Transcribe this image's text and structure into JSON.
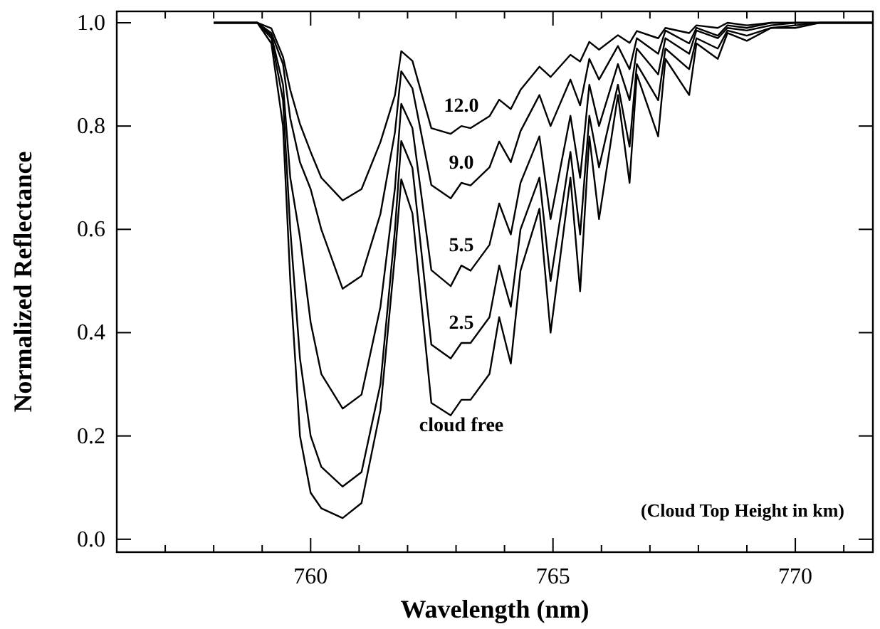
{
  "chart_data": {
    "type": "line",
    "xlabel": "Wavelength (nm)",
    "ylabel": "Normalized Reflectance",
    "x": [
      758.0,
      758.9,
      759.19,
      759.43,
      759.58,
      759.78,
      760.0,
      760.22,
      760.66,
      761.05,
      761.44,
      761.74,
      761.87,
      762.1,
      762.49,
      762.89,
      763.11,
      763.3,
      763.69,
      763.89,
      764.13,
      764.33,
      764.72,
      764.95,
      765.36,
      765.56,
      765.75,
      765.95,
      766.34,
      766.58,
      766.73,
      767.17,
      767.32,
      767.81,
      767.96,
      768.4,
      768.6,
      769.0,
      769.5,
      770.0,
      770.5,
      771.0,
      771.6
    ],
    "series": [
      {
        "name": "12.0",
        "color": "#000000",
        "values": [
          1.0,
          1.0,
          0.989,
          0.934,
          0.87,
          0.804,
          0.75,
          0.7,
          0.656,
          0.678,
          0.769,
          0.86,
          0.945,
          0.926,
          0.796,
          0.785,
          0.8,
          0.796,
          0.819,
          0.851,
          0.833,
          0.87,
          0.915,
          0.895,
          0.938,
          0.925,
          0.963,
          0.948,
          0.976,
          0.961,
          0.984,
          0.97,
          0.99,
          0.98,
          0.995,
          0.99,
          1.0,
          0.995,
          1.0,
          1.0,
          1.0,
          1.0,
          1.0
        ]
      },
      {
        "name": "9.0",
        "color": "#000000",
        "values": [
          1.0,
          1.0,
          0.98,
          0.92,
          0.815,
          0.73,
          0.678,
          0.6,
          0.485,
          0.51,
          0.63,
          0.788,
          0.906,
          0.873,
          0.686,
          0.66,
          0.69,
          0.685,
          0.72,
          0.77,
          0.73,
          0.79,
          0.86,
          0.8,
          0.89,
          0.84,
          0.93,
          0.89,
          0.955,
          0.91,
          0.97,
          0.94,
          0.985,
          0.96,
          0.99,
          0.975,
          0.995,
          0.99,
          1.0,
          1.0,
          1.0,
          1.0,
          1.0
        ]
      },
      {
        "name": "5.5",
        "color": "#000000",
        "values": [
          1.0,
          1.0,
          0.975,
          0.88,
          0.7,
          0.585,
          0.42,
          0.32,
          0.253,
          0.28,
          0.45,
          0.68,
          0.843,
          0.796,
          0.521,
          0.49,
          0.53,
          0.52,
          0.57,
          0.65,
          0.59,
          0.69,
          0.78,
          0.62,
          0.82,
          0.7,
          0.88,
          0.8,
          0.92,
          0.85,
          0.95,
          0.9,
          0.97,
          0.94,
          0.985,
          0.97,
          0.99,
          0.985,
          0.995,
          1.0,
          1.0,
          1.0,
          1.0
        ]
      },
      {
        "name": "2.5",
        "color": "#000000",
        "values": [
          1.0,
          1.0,
          0.97,
          0.85,
          0.6,
          0.35,
          0.2,
          0.14,
          0.102,
          0.13,
          0.3,
          0.6,
          0.771,
          0.719,
          0.377,
          0.35,
          0.38,
          0.38,
          0.43,
          0.53,
          0.45,
          0.6,
          0.7,
          0.5,
          0.75,
          0.59,
          0.82,
          0.72,
          0.88,
          0.76,
          0.92,
          0.85,
          0.95,
          0.91,
          0.97,
          0.95,
          0.985,
          0.975,
          0.99,
          0.995,
          1.0,
          1.0,
          1.0
        ]
      },
      {
        "name": "cloud free",
        "color": "#000000",
        "values": [
          1.0,
          1.0,
          0.96,
          0.8,
          0.5,
          0.2,
          0.09,
          0.06,
          0.041,
          0.07,
          0.25,
          0.55,
          0.697,
          0.631,
          0.264,
          0.24,
          0.27,
          0.27,
          0.32,
          0.43,
          0.34,
          0.52,
          0.64,
          0.4,
          0.7,
          0.48,
          0.78,
          0.62,
          0.86,
          0.69,
          0.9,
          0.78,
          0.93,
          0.86,
          0.96,
          0.93,
          0.98,
          0.965,
          0.99,
          0.99,
          1.0,
          1.0,
          1.0
        ]
      }
    ],
    "xlim": [
      756,
      771.6
    ],
    "xticks": [
      {
        "value": 757,
        "label": null
      },
      {
        "value": 758,
        "label": null
      },
      {
        "value": 759,
        "label": null
      },
      760,
      {
        "value": 761,
        "label": null
      },
      {
        "value": 762,
        "label": null
      },
      {
        "value": 763,
        "label": null
      },
      {
        "value": 764,
        "label": null
      },
      765,
      {
        "value": 766,
        "label": null
      },
      {
        "value": 767,
        "label": null
      },
      {
        "value": 768,
        "label": null
      },
      {
        "value": 769,
        "label": null
      },
      770,
      {
        "value": 771,
        "label": null
      }
    ],
    "ylim": [
      -0.025,
      1.022
    ],
    "yticks": [
      "0.0",
      0.2,
      0.4,
      0.6,
      0.8,
      "1.0"
    ],
    "annotations": [
      "(Cloud Top Height in km)"
    ],
    "grid": false,
    "marker": "none",
    "line_style": "solid"
  }
}
